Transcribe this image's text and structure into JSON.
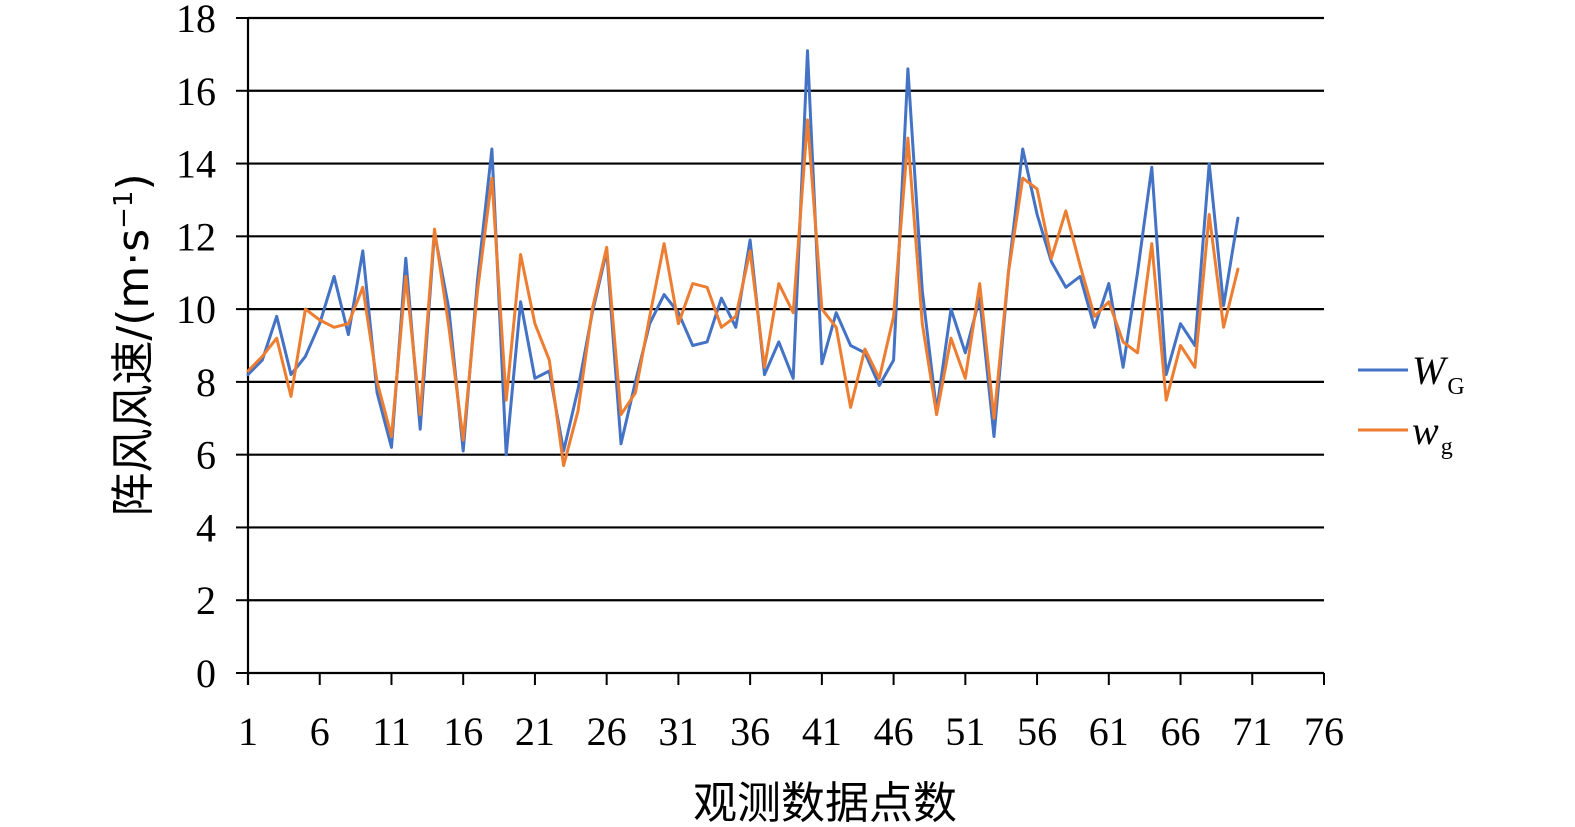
{
  "chart_data": {
    "type": "line",
    "xlabel": "观测数据点数",
    "ylabel": "阵风风速/(m·s",
    "ylabel_sup": "−1",
    "ylabel_close": ")",
    "xlim": [
      1,
      76
    ],
    "ylim": [
      0,
      18
    ],
    "x_ticks": [
      "1",
      "6",
      "11",
      "16",
      "21",
      "26",
      "31",
      "36",
      "41",
      "46",
      "51",
      "56",
      "61",
      "66",
      "71",
      "76"
    ],
    "y_ticks": [
      "0",
      "2",
      "4",
      "6",
      "8",
      "10",
      "12",
      "14",
      "16",
      "18"
    ],
    "grid": true,
    "legend_position": "right",
    "series": [
      {
        "name": "W",
        "name_sub": "G",
        "color": "#4472C4",
        "values": [
          8.2,
          8.6,
          9.8,
          8.2,
          8.7,
          9.6,
          10.9,
          9.3,
          11.6,
          7.7,
          6.2,
          11.4,
          6.7,
          12.1,
          10.0,
          6.1,
          10.8,
          14.4,
          6.0,
          10.2,
          8.1,
          8.3,
          6.1,
          7.8,
          9.9,
          11.6,
          6.3,
          8.0,
          9.6,
          10.4,
          9.9,
          9.0,
          9.1,
          10.3,
          9.5,
          11.9,
          8.2,
          9.1,
          8.1,
          17.1,
          8.5,
          9.9,
          9.0,
          8.8,
          7.9,
          8.6,
          16.6,
          10.5,
          7.2,
          10.0,
          8.8,
          10.3,
          6.5,
          11.0,
          14.4,
          12.6,
          11.3,
          10.6,
          10.9,
          9.5,
          10.7,
          8.4,
          11.0,
          13.9,
          8.2,
          9.6,
          9.0,
          14.0,
          10.1,
          12.5
        ]
      },
      {
        "name": "w",
        "name_sub": "g",
        "color": "#ED7D31",
        "values": [
          8.3,
          8.7,
          9.2,
          7.6,
          10.0,
          9.7,
          9.5,
          9.6,
          10.6,
          8.0,
          6.5,
          10.9,
          7.1,
          12.2,
          9.5,
          6.4,
          10.5,
          13.6,
          7.5,
          11.5,
          9.6,
          8.6,
          5.7,
          7.2,
          10.0,
          11.7,
          7.1,
          7.7,
          9.8,
          11.8,
          9.6,
          10.7,
          10.6,
          9.5,
          9.8,
          11.6,
          8.4,
          10.7,
          9.9,
          15.2,
          10.0,
          9.5,
          7.3,
          8.9,
          8.1,
          9.8,
          14.7,
          9.6,
          7.1,
          9.2,
          8.1,
          10.7,
          7.0,
          11.0,
          13.6,
          13.3,
          11.4,
          12.7,
          11.2,
          9.8,
          10.2,
          9.1,
          8.8,
          11.8,
          7.5,
          9.0,
          8.4,
          12.6,
          9.5,
          11.1
        ]
      }
    ]
  }
}
